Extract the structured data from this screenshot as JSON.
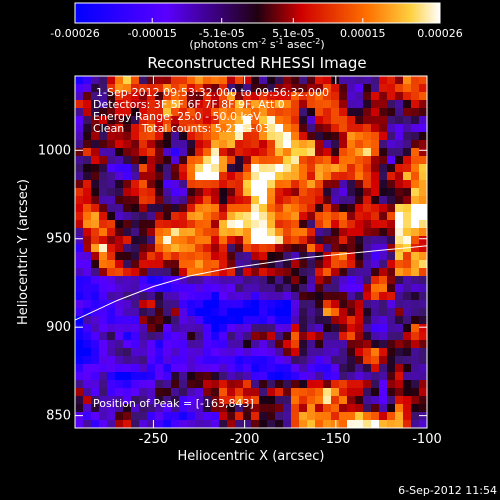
{
  "chart_data": {
    "type": "heatmap",
    "title": "Reconstructed RHESSI Image",
    "xlabel": "Heliocentric X (arcsec)",
    "ylabel": "Heliocentric Y (arcsec)",
    "xlim": [
      -293,
      -100
    ],
    "ylim": [
      843,
      1042
    ],
    "xticks": [
      -250,
      -200,
      -150,
      -100
    ],
    "yticks": [
      850,
      900,
      950,
      1000
    ],
    "colorbar": {
      "range": [
        -0.00026,
        0.00026
      ],
      "ticks": [
        {
          "value": -0.00026,
          "label": "-0.00026"
        },
        {
          "value": -0.00015,
          "label": "-0.00015"
        },
        {
          "value": -5.1e-05,
          "label": "-5.1e-05"
        },
        {
          "value": 5.1e-05,
          "label": "5.1e-05"
        },
        {
          "value": 0.00015,
          "label": "0.00015"
        },
        {
          "value": 0.00026,
          "label": "0.00026"
        }
      ],
      "unit_parts": [
        "(photons cm",
        "-2",
        " s",
        "-1",
        " asec",
        "-2",
        ")"
      ]
    },
    "info_lines": [
      "1-Sep-2012 09:53:32.000 to 09:56:32.000",
      "Detectors: 3F 5F 6F 7F 8F 9F, Att 0",
      "Energy Range: 25.0 - 50.0 keV",
      "Clean     Total counts: 5.21E+03"
    ],
    "peak_text": "Position of Peak = [-163,843]",
    "limb_curve": {
      "x": [
        -293,
        -270,
        -250,
        -230,
        -210,
        -190,
        -170,
        -150,
        -130,
        -110,
        -100
      ],
      "y": [
        904,
        915,
        923,
        929,
        933,
        936,
        939,
        941,
        943,
        945,
        946
      ]
    },
    "grid_visible": false
  },
  "timestamp": "6-Sep-2012 11:54"
}
